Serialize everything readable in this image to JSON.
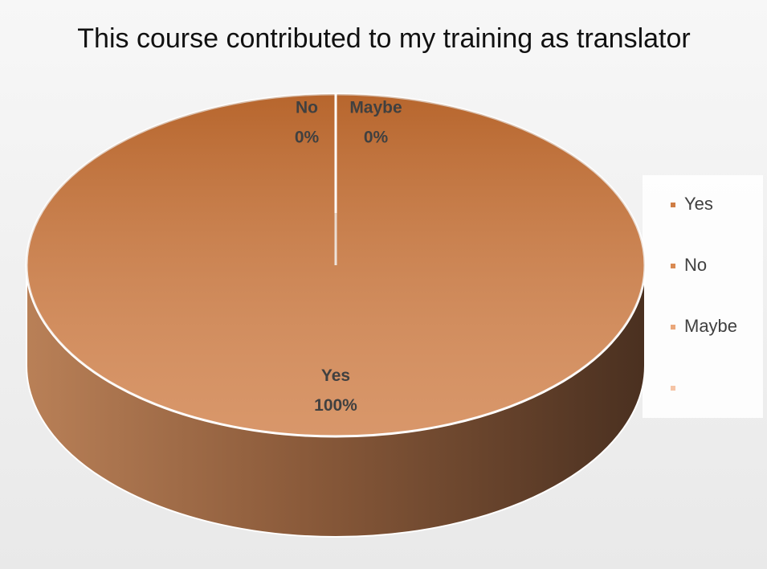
{
  "chart_data": {
    "type": "pie",
    "title": "This course contributed to my training as translator",
    "categories": [
      "Yes",
      "No",
      "Maybe",
      null
    ],
    "values": [
      100,
      0,
      0,
      0
    ],
    "value_labels": [
      "100%",
      "0%",
      "0%",
      null
    ],
    "colors": [
      "#cf7d45",
      "#d98a52",
      "#eaa77a",
      "#f5c4a6"
    ],
    "legend": "right"
  }
}
